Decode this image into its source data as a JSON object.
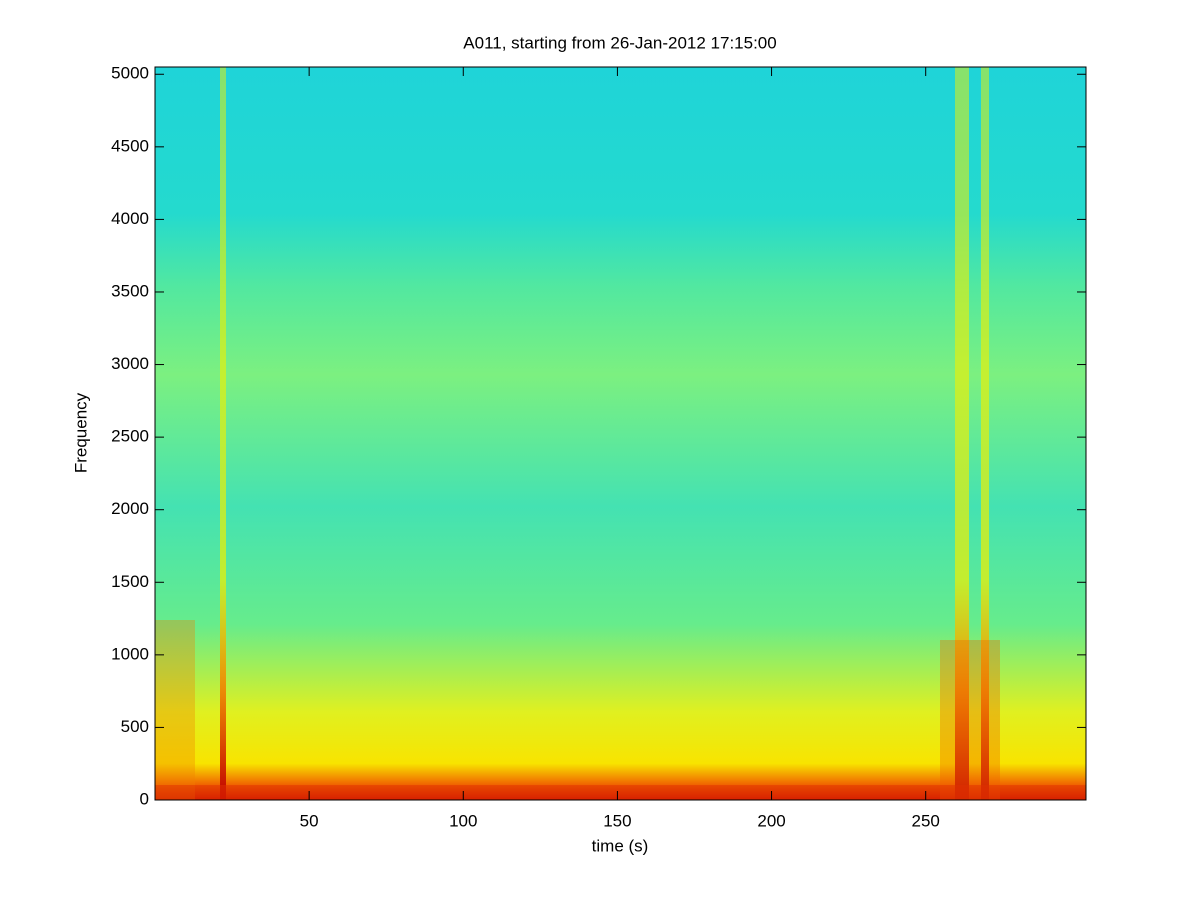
{
  "chart_data": {
    "type": "spectrogram",
    "title": "A011, starting from 26-Jan-2012 17:15:00",
    "xlabel": "time (s)",
    "ylabel": "Frequency",
    "xlim": [
      0,
      302
    ],
    "xticks": [
      50,
      100,
      150,
      200,
      250
    ],
    "ylim": [
      0,
      5050
    ],
    "yticks": [
      0,
      500,
      1000,
      1500,
      2000,
      2500,
      3000,
      3500,
      4000,
      4500,
      5000
    ],
    "colormap": "jet",
    "grid": false
  }
}
